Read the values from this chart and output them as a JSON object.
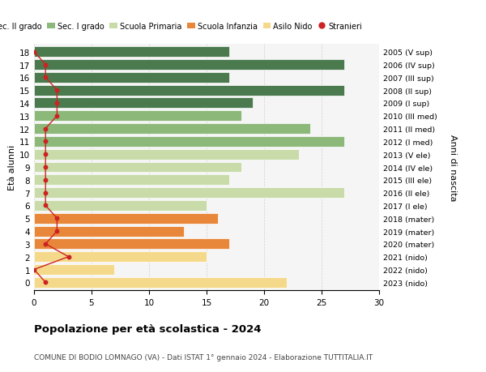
{
  "ages": [
    0,
    1,
    2,
    3,
    4,
    5,
    6,
    7,
    8,
    9,
    10,
    11,
    12,
    13,
    14,
    15,
    16,
    17,
    18
  ],
  "values": [
    22,
    7,
    15,
    17,
    13,
    16,
    15,
    27,
    17,
    18,
    23,
    27,
    24,
    18,
    19,
    27,
    17,
    27,
    17
  ],
  "stranieri": [
    1,
    0,
    3,
    1,
    2,
    2,
    1,
    1,
    1,
    1,
    1,
    1,
    1,
    2,
    2,
    2,
    1,
    1,
    0
  ],
  "right_labels": [
    "2023 (nido)",
    "2022 (nido)",
    "2021 (nido)",
    "2020 (mater)",
    "2019 (mater)",
    "2018 (mater)",
    "2017 (I ele)",
    "2016 (II ele)",
    "2015 (III ele)",
    "2014 (IV ele)",
    "2013 (V ele)",
    "2012 (I med)",
    "2011 (II med)",
    "2010 (III med)",
    "2009 (I sup)",
    "2008 (II sup)",
    "2007 (III sup)",
    "2006 (IV sup)",
    "2005 (V sup)"
  ],
  "bar_colors": [
    "#f5d98b",
    "#f5d98b",
    "#f5d98b",
    "#e8873a",
    "#e8873a",
    "#e8873a",
    "#c8dba8",
    "#c8dba8",
    "#c8dba8",
    "#c8dba8",
    "#c8dba8",
    "#8cb87a",
    "#8cb87a",
    "#8cb87a",
    "#4a7a4e",
    "#4a7a4e",
    "#4a7a4e",
    "#4a7a4e",
    "#4a7a4e"
  ],
  "legend_labels": [
    "Sec. II grado",
    "Sec. I grado",
    "Scuola Primaria",
    "Scuola Infanzia",
    "Asilo Nido",
    "Stranieri"
  ],
  "legend_colors": [
    "#4a7a4e",
    "#8cb87a",
    "#c8dba8",
    "#e8873a",
    "#f5d98b",
    "#cc2222"
  ],
  "stranieri_color": "#cc2222",
  "stranieri_line_color": "#cc2222",
  "ylabel": "Età alunni",
  "right_ylabel": "Anni di nascita",
  "title": "Popolazione per età scolastica - 2024",
  "subtitle": "COMUNE DI BODIO LOMNAGO (VA) - Dati ISTAT 1° gennaio 2024 - Elaborazione TUTTITALIA.IT",
  "xlim": [
    0,
    30
  ],
  "xticks": [
    0,
    5,
    10,
    15,
    20,
    25,
    30
  ],
  "background_color": "#f5f5f5",
  "fig_background": "#ffffff"
}
